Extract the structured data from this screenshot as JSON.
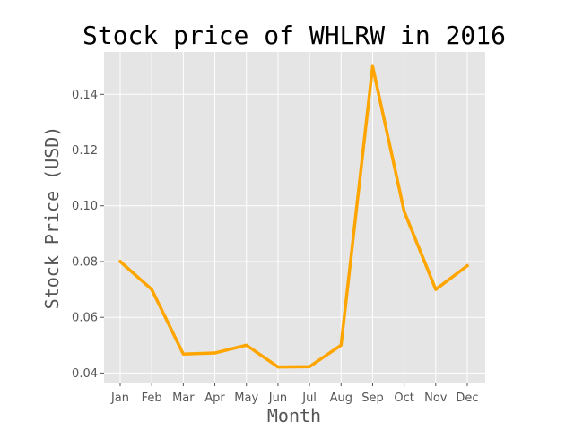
{
  "chart_data": {
    "type": "line",
    "title": "Stock price of WHLRW in 2016",
    "xlabel": "Month",
    "ylabel": "Stock Price (USD)",
    "categories": [
      "Jan",
      "Feb",
      "Mar",
      "Apr",
      "May",
      "Jun",
      "Jul",
      "Aug",
      "Sep",
      "Oct",
      "Nov",
      "Dec"
    ],
    "series": [
      {
        "values": [
          0.08,
          0.07,
          0.0468,
          0.0472,
          0.05,
          0.0422,
          0.0423,
          0.05,
          0.15,
          0.098,
          0.07,
          0.0785
        ]
      }
    ],
    "yticks": [
      "0.04",
      "0.06",
      "0.08",
      "0.10",
      "0.12",
      "0.14"
    ],
    "ylim": [
      0.0366,
      0.1552
    ],
    "grid": true,
    "colors": {
      "line": "#FFA500",
      "plot_background": "#E5E5E5",
      "grid": "#FFFFFF"
    }
  }
}
